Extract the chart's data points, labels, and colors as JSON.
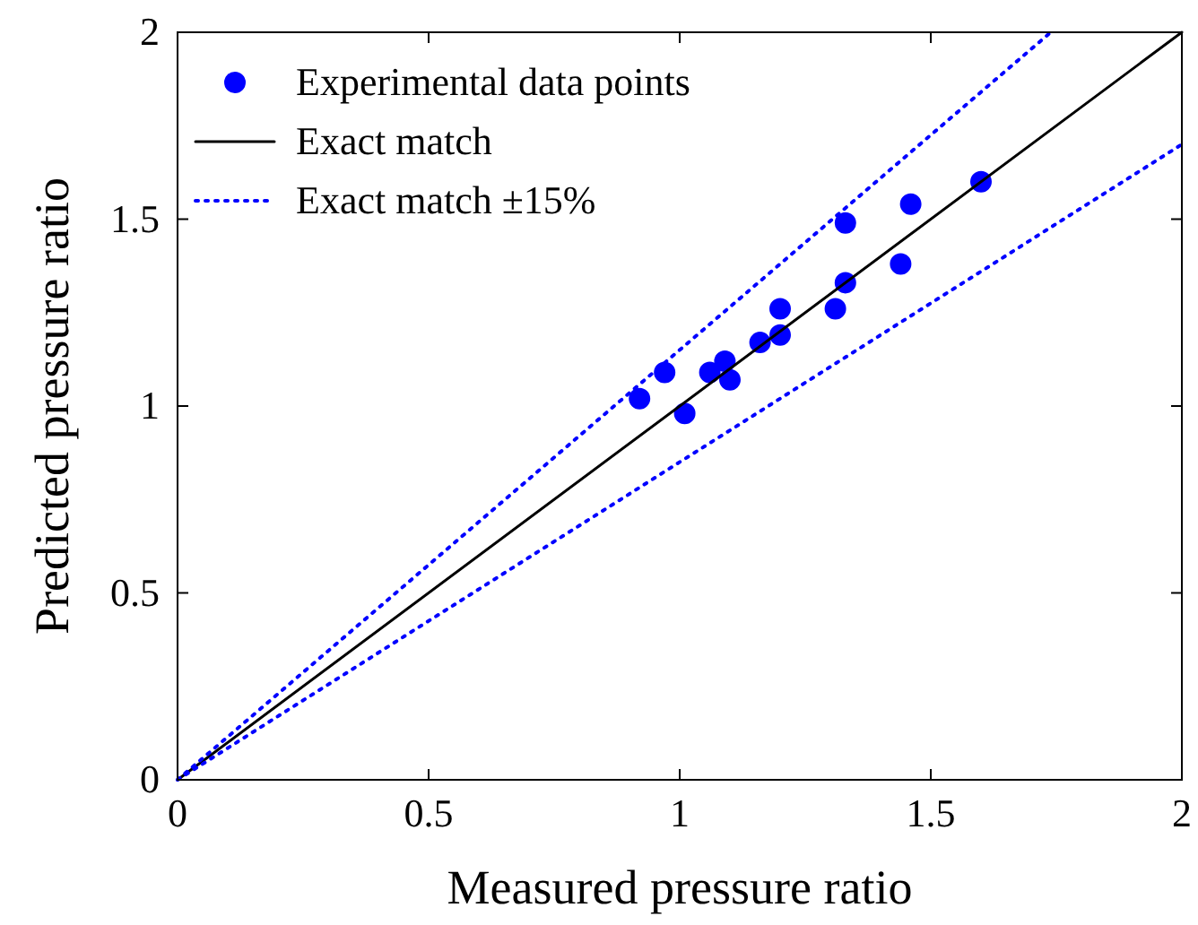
{
  "chart_data": {
    "type": "scatter",
    "xlabel": "Measured pressure ratio",
    "ylabel": "Predicted pressure ratio",
    "xlim": [
      0,
      2
    ],
    "ylim": [
      0,
      2
    ],
    "xticks": [
      0,
      0.5,
      1,
      1.5,
      2
    ],
    "yticks": [
      0,
      0.5,
      1,
      1.5,
      2
    ],
    "grid": false,
    "legend": "top left",
    "series": [
      {
        "name": "Experimental data points",
        "color": "#0000ff",
        "marker": "circle",
        "x": [
          0.92,
          0.97,
          1.01,
          1.06,
          1.09,
          1.1,
          1.16,
          1.2,
          1.2,
          1.31,
          1.33,
          1.33,
          1.44,
          1.46,
          1.6
        ],
        "values": [
          1.02,
          1.09,
          0.98,
          1.09,
          1.12,
          1.07,
          1.17,
          1.19,
          1.26,
          1.26,
          1.33,
          1.49,
          1.38,
          1.54,
          1.6
        ]
      },
      {
        "name": "Exact match",
        "type": "line",
        "color": "#000000",
        "line_style": "solid",
        "x": [
          0,
          2
        ],
        "values": [
          0,
          2
        ]
      },
      {
        "name": "Exact match ±15%",
        "type": "line",
        "color": "#0000ff",
        "line_style": "dotted",
        "x": [
          0,
          1.739
        ],
        "values": [
          0,
          2
        ]
      },
      {
        "type": "line",
        "color": "#0000ff",
        "line_style": "dotted",
        "x": [
          0,
          2
        ],
        "values": [
          0,
          1.7
        ]
      }
    ]
  }
}
